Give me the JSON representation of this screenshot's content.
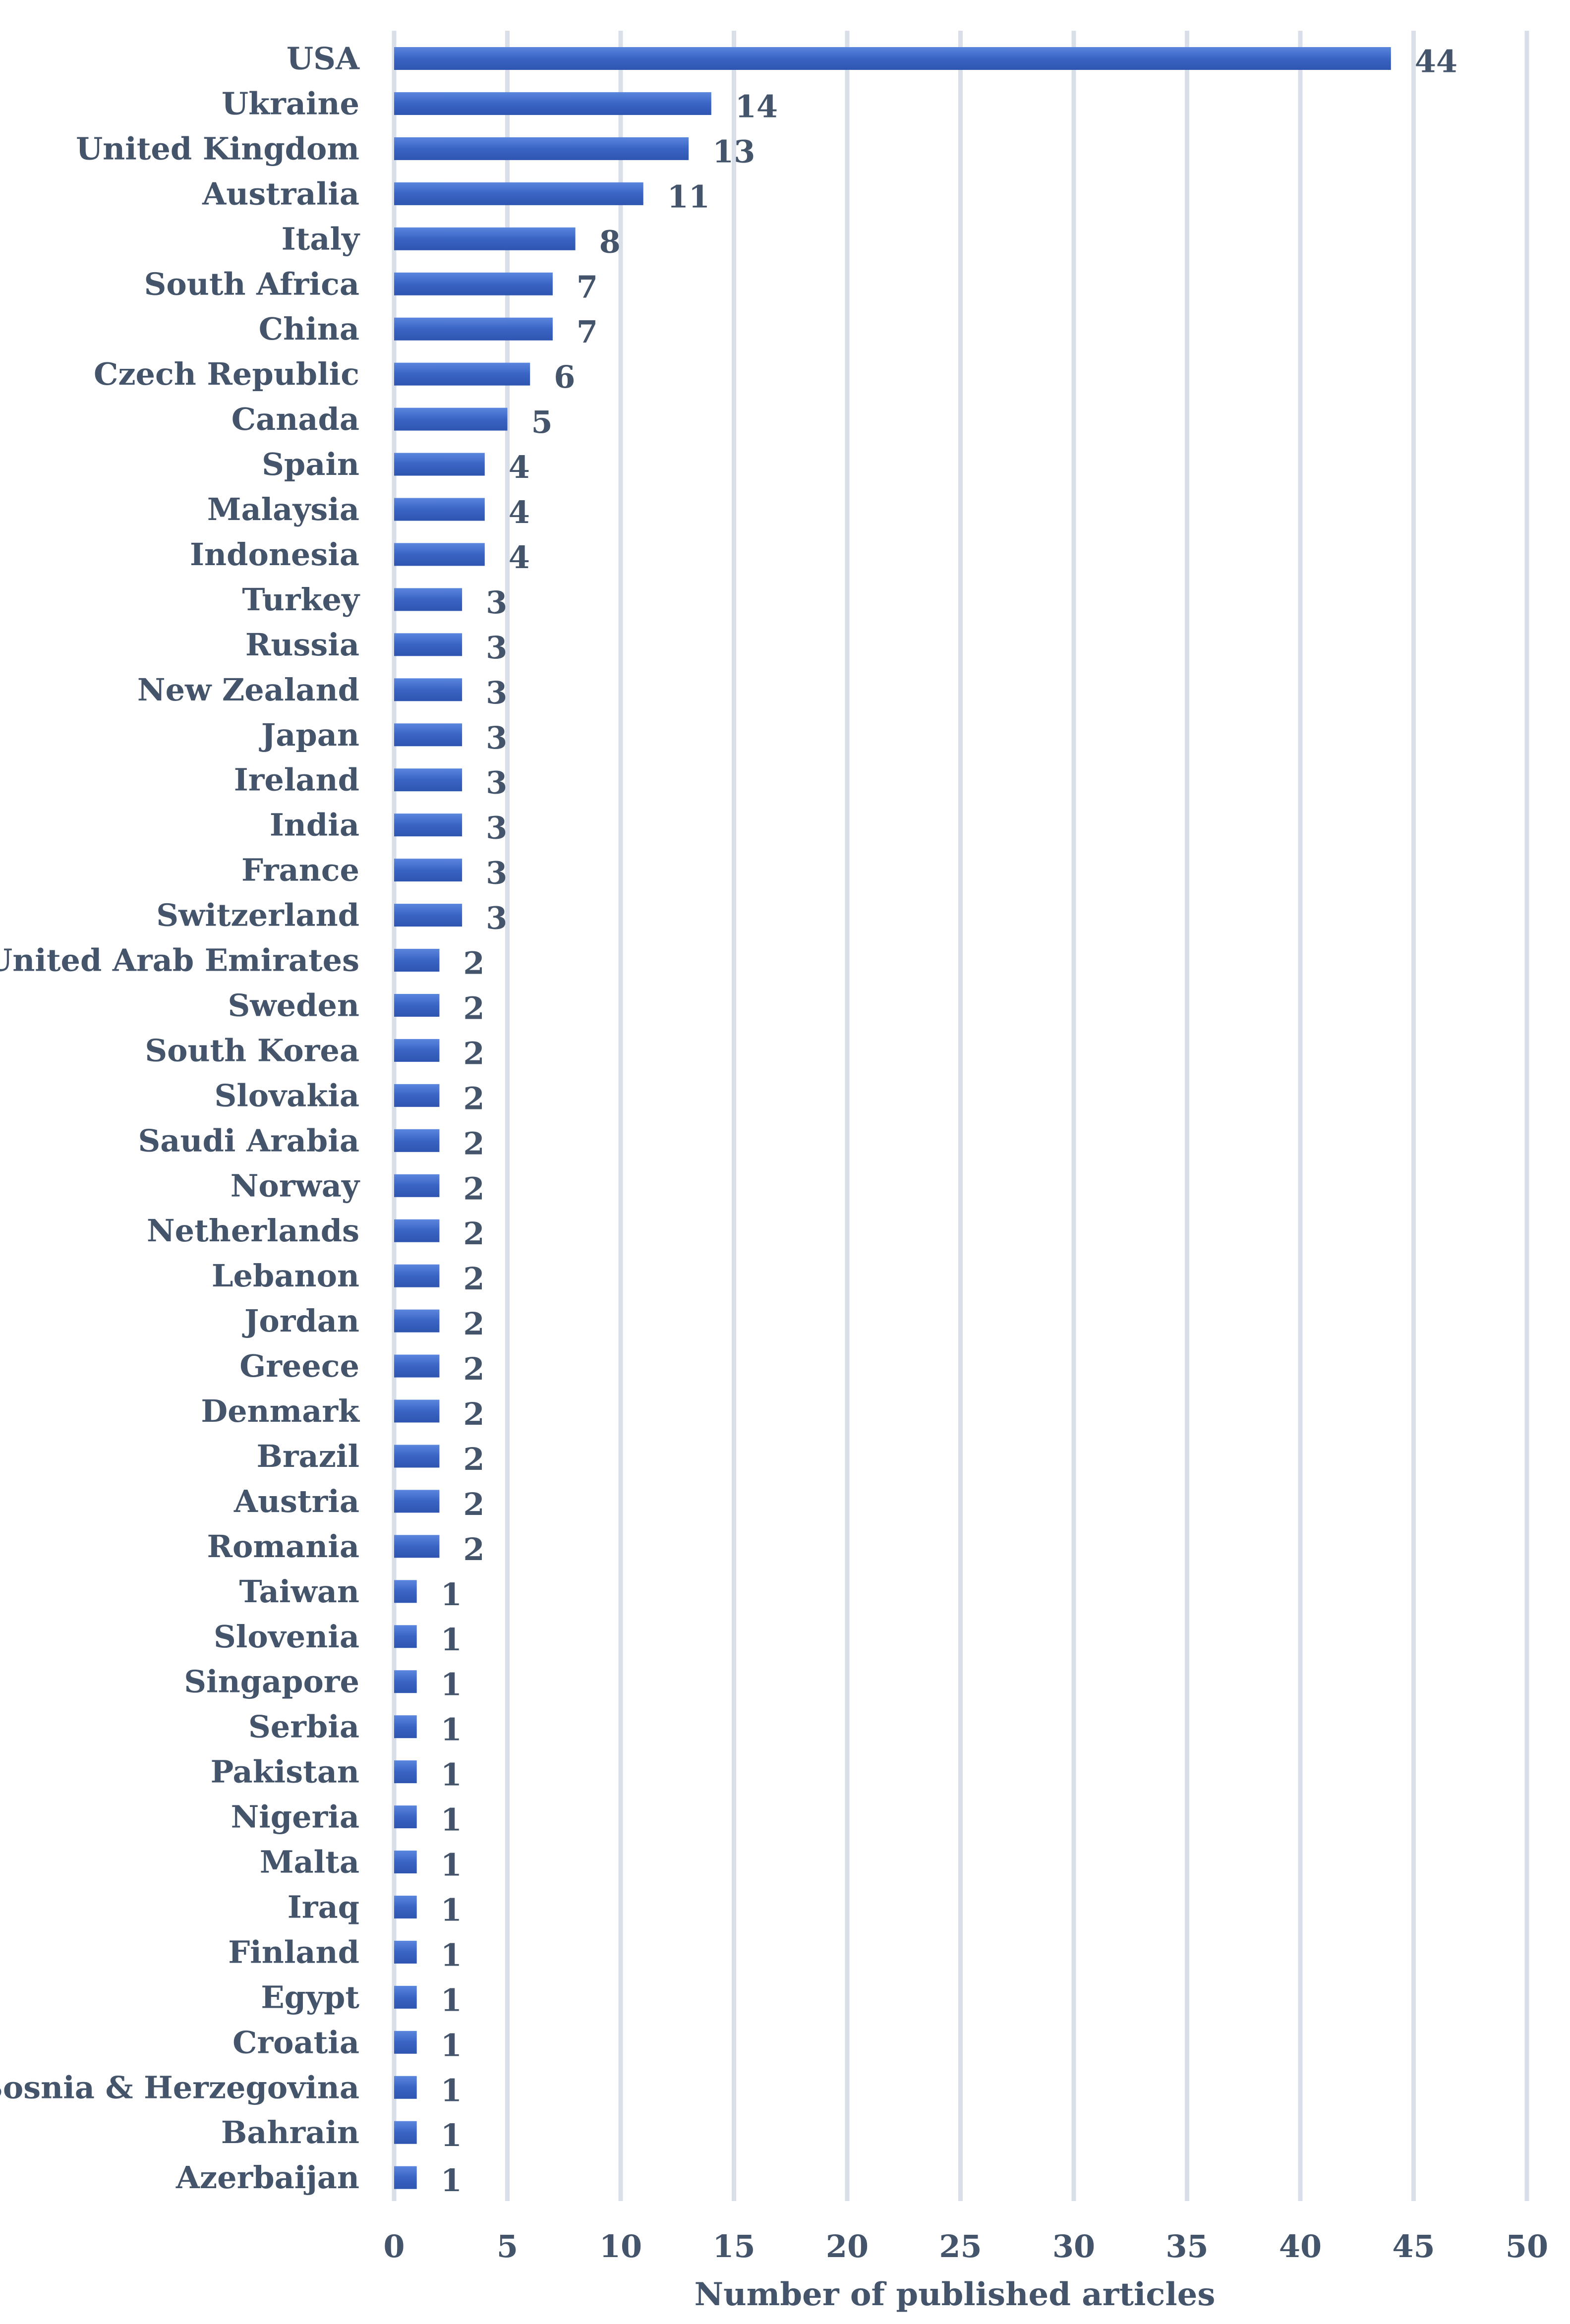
{
  "chart_data": {
    "type": "bar",
    "orientation": "horizontal",
    "title": "",
    "xlabel": "Number of published articles",
    "ylabel": "",
    "xlim": [
      0,
      50
    ],
    "x_ticks": [
      0,
      5,
      10,
      15,
      20,
      25,
      30,
      35,
      40,
      45,
      50
    ],
    "grid": "vertical gridlines on",
    "legend": "none",
    "bar_color": "#3a64c4",
    "data_labels": true,
    "categories": [
      "USA",
      "Ukraine",
      "United Kingdom",
      "Australia",
      "Italy",
      "South Africa",
      "China",
      "Czech Republic",
      "Canada",
      "Spain",
      "Malaysia",
      "Indonesia",
      "Turkey",
      "Russia",
      "New Zealand",
      "Japan",
      "Ireland",
      "India",
      "France",
      "Switzerland",
      "United Arab Emirates",
      "Sweden",
      "South Korea",
      "Slovakia",
      "Saudi Arabia",
      "Norway",
      "Netherlands",
      "Lebanon",
      "Jordan",
      "Greece",
      "Denmark",
      "Brazil",
      "Austria",
      "Romania",
      "Taiwan",
      "Slovenia",
      "Singapore",
      "Serbia",
      "Pakistan",
      "Nigeria",
      "Malta",
      "Iraq",
      "Finland",
      "Egypt",
      "Croatia",
      "Bosnia & Herzegovina",
      "Bahrain",
      "Azerbaijan"
    ],
    "values": [
      44,
      14,
      13,
      11,
      8,
      7,
      7,
      6,
      5,
      4,
      4,
      4,
      3,
      3,
      3,
      3,
      3,
      3,
      3,
      3,
      2,
      2,
      2,
      2,
      2,
      2,
      2,
      2,
      2,
      2,
      2,
      2,
      2,
      2,
      1,
      1,
      1,
      1,
      1,
      1,
      1,
      1,
      1,
      1,
      1,
      1,
      1,
      1
    ]
  }
}
